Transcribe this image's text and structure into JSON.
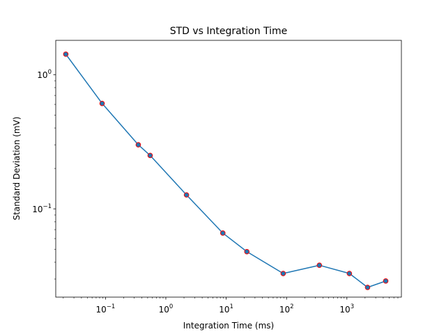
{
  "chart_data": {
    "type": "line",
    "title": "STD vs Integration Time",
    "xlabel": "Integration Time (ms)",
    "ylabel": "Standard Deviation (mV)",
    "xscale": "log",
    "yscale": "log",
    "xlim": [
      0.015,
      8000
    ],
    "ylim": [
      0.022,
      1.8
    ],
    "grid": false,
    "legend": "none",
    "x_ticks": [
      {
        "value": 0.1,
        "base": "10",
        "exp": "−1"
      },
      {
        "value": 1,
        "base": "10",
        "exp": "0"
      },
      {
        "value": 10,
        "base": "10",
        "exp": "1"
      },
      {
        "value": 100,
        "base": "10",
        "exp": "2"
      },
      {
        "value": 1000,
        "base": "10",
        "exp": "3"
      }
    ],
    "y_ticks": [
      {
        "value": 0.1,
        "base": "10",
        "exp": "−1"
      },
      {
        "value": 1,
        "base": "10",
        "exp": "0"
      }
    ],
    "line_color": "#1f77b4",
    "marker_face_color": "#1f77b4",
    "marker_edge_color": "#ff0000",
    "series": [
      {
        "x": [
          0.022,
          0.088,
          0.35,
          0.55,
          2.2,
          8.8,
          22,
          88,
          350,
          1100,
          2200,
          4400
        ],
        "y": [
          1.42,
          0.61,
          0.3,
          0.25,
          0.127,
          0.066,
          0.048,
          0.033,
          0.038,
          0.033,
          0.026,
          0.029
        ]
      }
    ]
  }
}
